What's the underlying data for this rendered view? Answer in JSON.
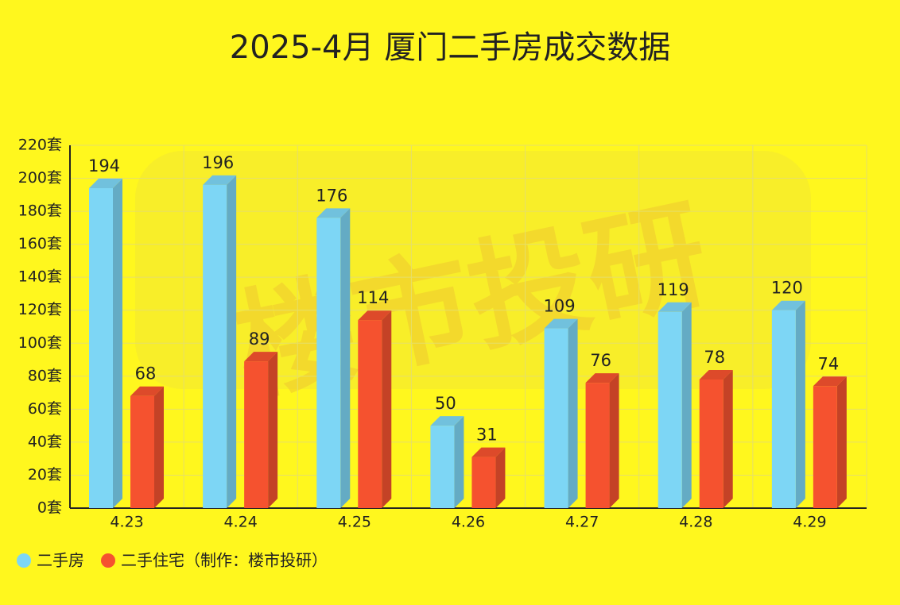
{
  "chart_data": {
    "type": "bar3d",
    "title": "2025-4月 厦门二手房成交数据",
    "watermark": "楼市投研",
    "categories": [
      "4.23",
      "4.24",
      "4.25",
      "4.26",
      "4.27",
      "4.28",
      "4.29"
    ],
    "series": [
      {
        "name": "二手房",
        "color": "#7dd6f5",
        "values": [
          194,
          196,
          176,
          50,
          109,
          119,
          120
        ]
      },
      {
        "name": "二手住宅（制作：楼市投研）",
        "color": "#f5522f",
        "values": [
          68,
          89,
          114,
          31,
          76,
          78,
          74
        ]
      }
    ],
    "ylim": [
      0,
      220
    ],
    "yticks": [
      {
        "value": 0,
        "label": "0套"
      },
      {
        "value": 20,
        "label": "20套"
      },
      {
        "value": 40,
        "label": "40套"
      },
      {
        "value": 60,
        "label": "60套"
      },
      {
        "value": 80,
        "label": "80套"
      },
      {
        "value": 100,
        "label": "100套"
      },
      {
        "value": 120,
        "label": "120套"
      },
      {
        "value": 140,
        "label": "140套"
      },
      {
        "value": 160,
        "label": "160套"
      },
      {
        "value": 180,
        "label": "180套"
      },
      {
        "value": 200,
        "label": "200套"
      },
      {
        "value": 220,
        "label": "220套"
      }
    ],
    "grid": true,
    "legend": "bottom-left"
  }
}
